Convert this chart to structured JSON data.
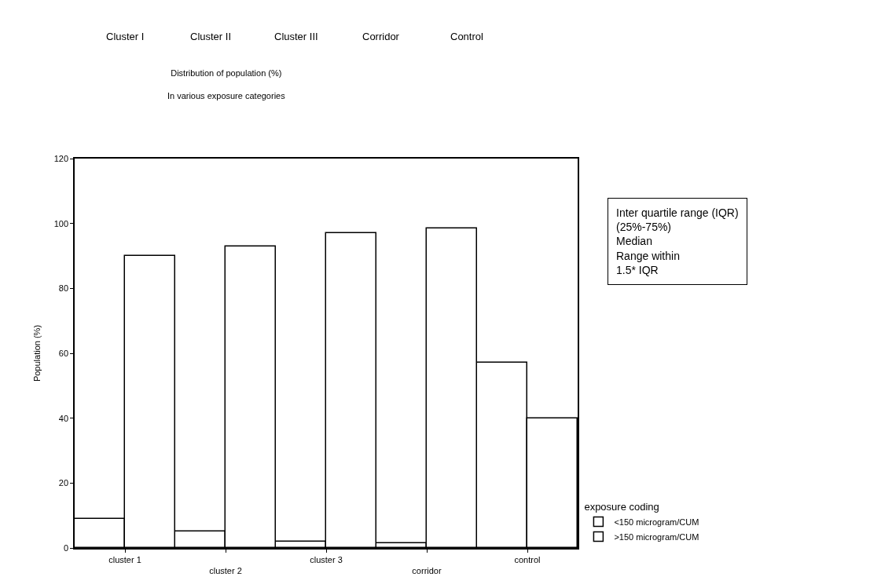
{
  "chart_data": {
    "type": "bar",
    "title": "Distribution of population (%)",
    "subtitle": "In various exposure categories",
    "ylabel": "Population (%)",
    "legend_title": "exposure coding",
    "categories": [
      "cluster 1",
      "cluster 2",
      "cluster 3",
      "corridor",
      "control"
    ],
    "series": [
      {
        "name": "<150 microgram/CUM",
        "color": "#ffffff",
        "values": [
          9,
          5,
          2,
          1.5,
          57
        ]
      },
      {
        "name": ">150 microgram/CUM",
        "color": "#ffffff",
        "values": [
          90,
          93,
          97,
          98.5,
          40
        ]
      }
    ],
    "ylim": [
      0,
      120
    ],
    "yticks": [
      0,
      20,
      40,
      60,
      80,
      100,
      120
    ],
    "grid": false,
    "legend": "right",
    "annotations": [
      "Cluster I",
      "Cluster II",
      "Cluster III",
      "Corridor",
      "Control",
      "Inter quartile range (IQR)\n(25%-75%)\nMedian\nRange within\n1.5* IQR"
    ]
  }
}
